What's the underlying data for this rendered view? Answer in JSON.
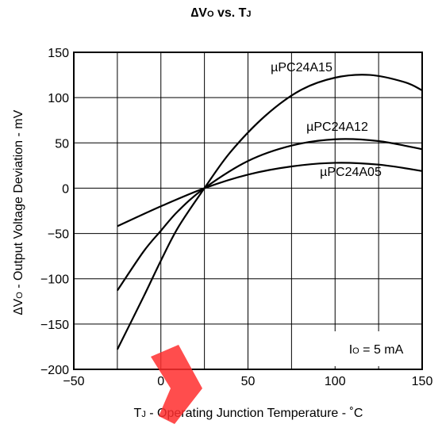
{
  "chart_data": {
    "type": "line",
    "title": {
      "delta": "∆",
      "v": "V",
      "v_sub": "O",
      "mid": " vs. T",
      "t_sub": "J"
    },
    "xlabel": {
      "t": "T",
      "t_sub": "J",
      "rest": " - Operating Junction Temperature - ˚C"
    },
    "ylabel": {
      "delta": "∆",
      "v": "V",
      "v_sub": "O",
      "rest": " - Output Voltage Deviation - mV"
    },
    "xlim": [
      -50,
      150
    ],
    "ylim": [
      -200,
      150
    ],
    "x_ticks": [
      "−50",
      "0",
      "50",
      "100",
      "150"
    ],
    "y_ticks": [
      "150",
      "100",
      "50",
      "0",
      "−50",
      "−100",
      "−150",
      "−200"
    ],
    "grid": true,
    "annotation": {
      "i": "I",
      "i_sub": "O",
      "rest": " = 5 mA"
    },
    "series": [
      {
        "name": "µPC24A15",
        "x": [
          -25,
          -10,
          0,
          10,
          25,
          40,
          60,
          80,
          100,
          120,
          140,
          150
        ],
        "y": [
          -178,
          -120,
          -80,
          -43,
          0,
          40,
          80,
          108,
          122,
          125,
          117,
          108
        ]
      },
      {
        "name": "µPC24A12",
        "x": [
          -25,
          -10,
          0,
          10,
          25,
          50,
          75,
          100,
          125,
          150
        ],
        "y": [
          -113,
          -70,
          -47,
          -25,
          0,
          30,
          47,
          54,
          52,
          43
        ]
      },
      {
        "name": "µPC24A05",
        "x": [
          -25,
          0,
          25,
          50,
          75,
          100,
          125,
          150
        ],
        "y": [
          -42,
          -20,
          0,
          15,
          24,
          28,
          26,
          19
        ]
      }
    ]
  }
}
